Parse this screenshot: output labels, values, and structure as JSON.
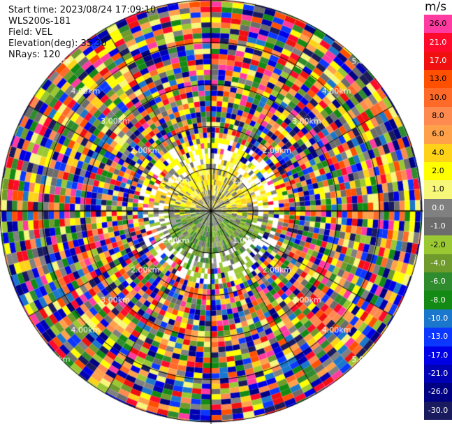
{
  "header": {
    "start_time": "Start time: 2023/08/24 17:09:10",
    "instrument": "WLS200s-181",
    "field": "Field: VEL",
    "elevation": "Elevation(deg): 35.30",
    "nrays": "NRays: 120"
  },
  "chart_data": {
    "type": "heatmap",
    "projection": "polar-ppi",
    "field": "VEL",
    "units": "m/s",
    "start_time": "2023/08/24 17:09:10",
    "elevation_deg": 35.3,
    "n_rays": 120,
    "range_rings_km": [
      1.0,
      2.0,
      3.0,
      4.0,
      5.0
    ],
    "range_ring_labels": [
      "1.00km",
      "2.00km",
      "3.00km",
      "4.00km",
      "5.00km"
    ],
    "max_range_km": 5.0,
    "colorbar": {
      "title": "m/s",
      "ticks": [
        "26.0",
        "21.0",
        "17.0",
        "13.0",
        "10.0",
        "8.0",
        "6.0",
        "4.0",
        "2.0",
        "1.0",
        "0.0",
        "-1.0",
        "-2.0",
        "-4.0",
        "-6.0",
        "-8.0",
        "-10.0",
        "-13.0",
        "-17.0",
        "-21.0",
        "-26.0",
        "-30.0"
      ],
      "colors": [
        "#ff3aa0",
        "#ff0a2c",
        "#f01010",
        "#ff5000",
        "#ff6a28",
        "#ff8a50",
        "#ffa14a",
        "#ffd21a",
        "#ffff00",
        "#f7f77a",
        "#808080",
        "#6c6c6c",
        "#9ac832",
        "#6f9a2c",
        "#2e8b2e",
        "#138a13",
        "#1a77cc",
        "#0b37ff",
        "#0000e6",
        "#0000b4",
        "#000082",
        "#1a1a5e"
      ]
    },
    "near_field": {
      "description_values": "Within about 1.3 km velocities are mostly between -4.0 and 4.0 m/s: +2 to +4 (yellow) toward the north, 0 to -1 (gray) in the center, -2 to -6 (green) toward the south; beyond about 1.5 km the returns are noise spanning the full -30.0 to 26.0 range."
    }
  }
}
